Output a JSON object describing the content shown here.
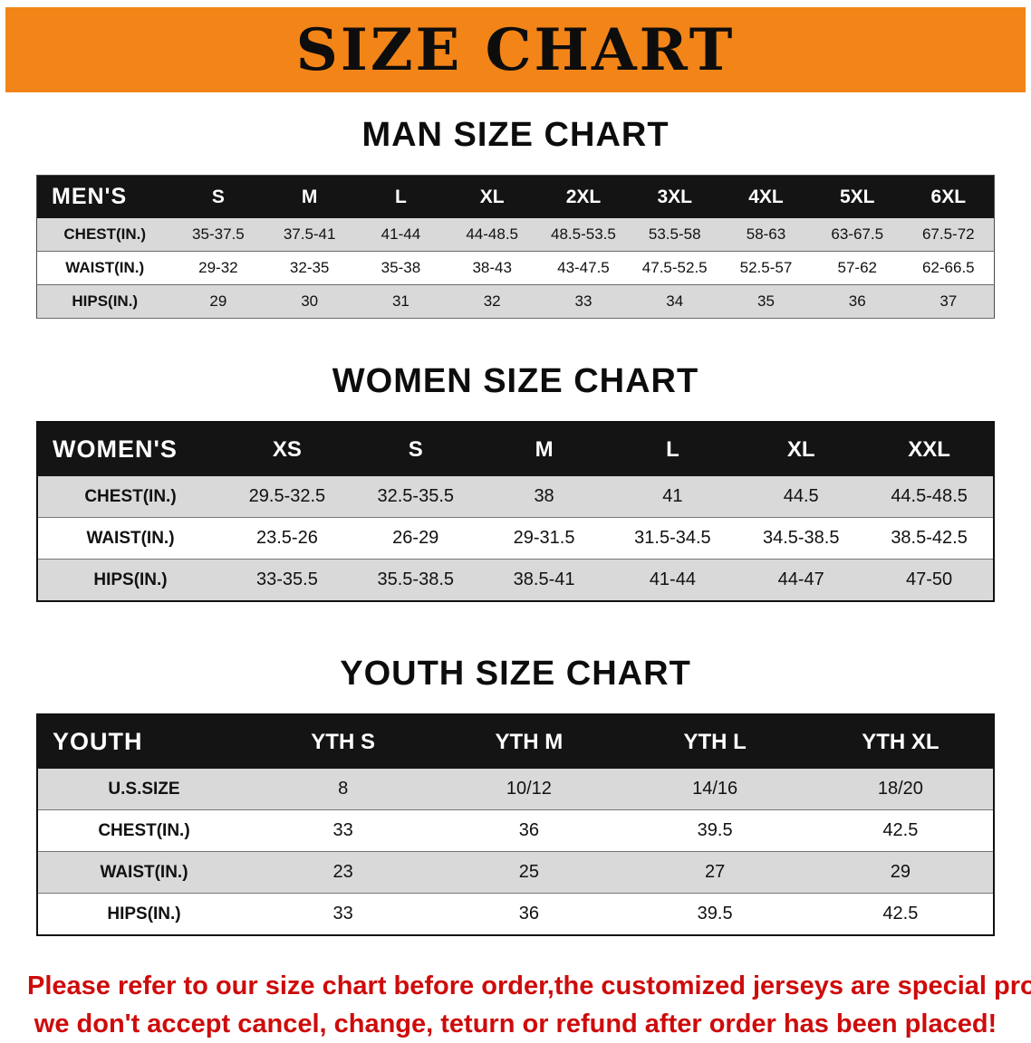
{
  "colors": {
    "banner_bg": "#F28418",
    "header_bg": "#141414",
    "shade_bg": "#D9D9D9",
    "footer_red": "#CE0B0B"
  },
  "banner": {
    "title": "SIZE CHART"
  },
  "sections": [
    {
      "heading": "MAN SIZE CHART",
      "table": {
        "header": [
          "MEN'S",
          "S",
          "M",
          "L",
          "XL",
          "2XL",
          "3XL",
          "4XL",
          "5XL",
          "6XL"
        ],
        "rows": [
          {
            "label": "CHEST(IN.)",
            "values": [
              "35-37.5",
              "37.5-41",
              "41-44",
              "44-48.5",
              "48.5-53.5",
              "53.5-58",
              "58-63",
              "63-67.5",
              "67.5-72"
            ]
          },
          {
            "label": "WAIST(IN.)",
            "values": [
              "29-32",
              "32-35",
              "35-38",
              "38-43",
              "43-47.5",
              "47.5-52.5",
              "52.5-57",
              "57-62",
              "62-66.5"
            ]
          },
          {
            "label": "HIPS(IN.)",
            "values": [
              "29",
              "30",
              "31",
              "32",
              "33",
              "34",
              "35",
              "36",
              "37"
            ]
          }
        ]
      }
    },
    {
      "heading": "WOMEN SIZE CHART",
      "table": {
        "header": [
          "WOMEN'S",
          "XS",
          "S",
          "M",
          "L",
          "XL",
          "XXL"
        ],
        "rows": [
          {
            "label": "CHEST(IN.)",
            "values": [
              "29.5-32.5",
              "32.5-35.5",
              "38",
              "41",
              "44.5",
              "44.5-48.5"
            ]
          },
          {
            "label": "WAIST(IN.)",
            "values": [
              "23.5-26",
              "26-29",
              "29-31.5",
              "31.5-34.5",
              "34.5-38.5",
              "38.5-42.5"
            ]
          },
          {
            "label": "HIPS(IN.)",
            "values": [
              "33-35.5",
              "35.5-38.5",
              "38.5-41",
              "41-44",
              "44-47",
              "47-50"
            ]
          }
        ]
      }
    },
    {
      "heading": "YOUTH SIZE CHART",
      "table": {
        "header": [
          "YOUTH",
          "YTH S",
          "YTH M",
          "YTH L",
          "YTH XL"
        ],
        "rows": [
          {
            "label": "U.S.SIZE",
            "values": [
              "8",
              "10/12",
              "14/16",
              "18/20"
            ]
          },
          {
            "label": "CHEST(IN.)",
            "values": [
              "33",
              "36",
              "39.5",
              "42.5"
            ]
          },
          {
            "label": "WAIST(IN.)",
            "values": [
              "23",
              "25",
              "27",
              "29"
            ]
          },
          {
            "label": "HIPS(IN.)",
            "values": [
              "33",
              "36",
              "39.5",
              "42.5"
            ]
          }
        ]
      }
    }
  ],
  "footer": {
    "line1": "Please refer to our size chart before order,the customized jerseys are special products,",
    "line2": "we don't accept cancel, change, teturn or refund after order has been placed!"
  }
}
